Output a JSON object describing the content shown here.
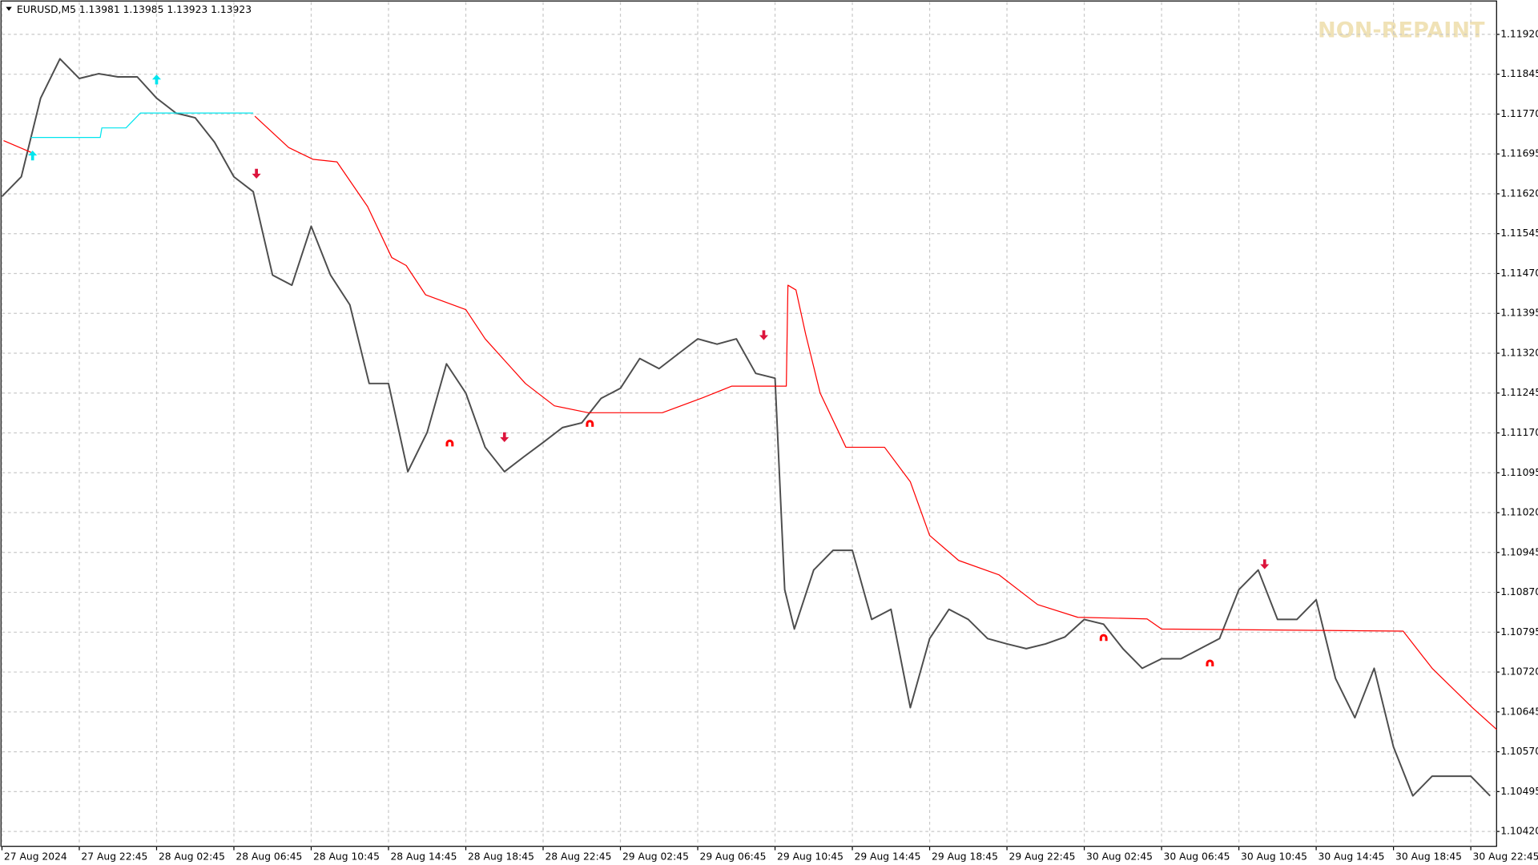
{
  "chart_data": {
    "type": "line",
    "title": "EURUSD,M5  1.13981 1.13985 1.13923 1.13923",
    "annotation": "NON-REPAINT",
    "grid": true,
    "xlim": [
      0,
      928
    ],
    "ylim": [
      1.10392,
      1.11981
    ],
    "xticks": [
      {
        "value": 0,
        "label": "27 Aug 2024"
      },
      {
        "value": 48,
        "label": "27 Aug 22:45"
      },
      {
        "value": 96,
        "label": "28 Aug 02:45"
      },
      {
        "value": 144,
        "label": "28 Aug 06:45"
      },
      {
        "value": 192,
        "label": "28 Aug 10:45"
      },
      {
        "value": 240,
        "label": "28 Aug 14:45"
      },
      {
        "value": 288,
        "label": "28 Aug 18:45"
      },
      {
        "value": 336,
        "label": "28 Aug 22:45"
      },
      {
        "value": 384,
        "label": "29 Aug 02:45"
      },
      {
        "value": 432,
        "label": "29 Aug 06:45"
      },
      {
        "value": 480,
        "label": "29 Aug 10:45"
      },
      {
        "value": 528,
        "label": "29 Aug 14:45"
      },
      {
        "value": 576,
        "label": "29 Aug 18:45"
      },
      {
        "value": 624,
        "label": "29 Aug 22:45"
      },
      {
        "value": 672,
        "label": "30 Aug 02:45"
      },
      {
        "value": 720,
        "label": "30 Aug 06:45"
      },
      {
        "value": 768,
        "label": "30 Aug 10:45"
      },
      {
        "value": 816,
        "label": "30 Aug 14:45"
      },
      {
        "value": 864,
        "label": "30 Aug 18:45"
      },
      {
        "value": 912,
        "label": "30 Aug 22:45"
      }
    ],
    "yticks": [
      {
        "value": 1.1192,
        "label": "1.11920"
      },
      1.11845,
      {
        "value": 1.1177,
        "label": "1.11770"
      },
      1.11695,
      {
        "value": 1.1162,
        "label": "1.11620"
      },
      1.11545,
      {
        "value": 1.1147,
        "label": "1.11470"
      },
      1.11395,
      {
        "value": 1.1132,
        "label": "1.11320"
      },
      1.11245,
      {
        "value": 1.1117,
        "label": "1.11170"
      },
      1.11095,
      {
        "value": 1.1102,
        "label": "1.11020"
      },
      1.10945,
      {
        "value": 1.1087,
        "label": "1.10870"
      },
      1.10795,
      {
        "value": 1.1072,
        "label": "1.10720"
      },
      1.10645,
      {
        "value": 1.1057,
        "label": "1.10570"
      },
      1.10495,
      {
        "value": 1.1042,
        "label": "1.10420"
      }
    ],
    "series": [
      {
        "color": "#4d4d4d",
        "x": [
          0,
          12,
          24,
          36,
          48,
          60,
          72,
          84,
          96,
          108,
          120,
          132,
          144,
          156,
          168,
          180,
          192,
          204,
          216,
          228,
          240,
          252,
          264,
          276,
          288,
          300,
          312,
          324,
          336,
          348,
          360,
          372,
          384,
          396,
          408,
          420,
          432,
          444,
          456,
          468,
          480,
          486,
          492,
          504,
          516,
          528,
          540,
          552,
          564,
          576,
          588,
          600,
          612,
          624,
          636,
          648,
          660,
          672,
          684,
          696,
          708,
          720,
          732,
          744,
          756,
          768,
          780,
          792,
          804,
          816,
          828,
          840,
          852,
          864,
          876,
          888,
          900,
          912,
          924
        ],
        "values": [
          1.11615,
          1.11652,
          1.118,
          1.11874,
          1.11837,
          1.11846,
          1.1184,
          1.1184,
          1.118,
          1.11772,
          1.11763,
          1.11717,
          1.11652,
          1.11624,
          1.11467,
          1.11448,
          1.11559,
          1.11467,
          1.11411,
          1.11263,
          1.11263,
          1.11097,
          1.11171,
          1.113,
          1.11245,
          1.11143,
          1.11097,
          1.11125,
          1.11152,
          1.1118,
          1.11189,
          1.11235,
          1.11254,
          1.1131,
          1.11291,
          1.11319,
          1.11347,
          1.11337,
          1.11347,
          1.11282,
          1.11273,
          1.10875,
          1.10801,
          1.10912,
          1.10949,
          1.10949,
          1.10819,
          1.10838,
          1.10653,
          1.10783,
          1.10838,
          1.10819,
          1.10783,
          1.10773,
          1.10764,
          1.10773,
          1.10786,
          1.10819,
          1.1081,
          1.10764,
          1.10727,
          1.10745,
          1.10745,
          1.10764,
          1.10783,
          1.10875,
          1.10912,
          1.10819,
          1.10819,
          1.10856,
          1.10708,
          1.10634,
          1.10727,
          1.10579,
          1.10487,
          1.10524,
          1.10524,
          1.10524,
          1.10487
        ]
      },
      {
        "color": "#ff0000",
        "x": [
          1,
          18
        ],
        "values": [
          1.1172,
          1.11698
        ]
      },
      {
        "color": "#00e5ee",
        "x": [
          18,
          61,
          62,
          77,
          86,
          156
        ],
        "values": [
          1.11726,
          1.11726,
          1.11744,
          1.11744,
          1.11772,
          1.11772
        ]
      },
      {
        "color": "#ff0000",
        "x": [
          157,
          178,
          193,
          208,
          227,
          242,
          251,
          263,
          288,
          300,
          325,
          343,
          364,
          410,
          435,
          453,
          487,
          488,
          493,
          499,
          508,
          524,
          548,
          564,
          576,
          594,
          619,
          643,
          668,
          711,
          720,
          870,
          888,
          913,
          928
        ],
        "values": [
          1.11766,
          1.11707,
          1.11685,
          1.1168,
          1.11596,
          1.115,
          1.11485,
          1.1143,
          1.11402,
          1.11347,
          1.11263,
          1.11221,
          1.11208,
          1.11208,
          1.11236,
          1.11258,
          1.11258,
          1.11448,
          1.11439,
          1.11356,
          1.11245,
          1.11143,
          1.11143,
          1.11078,
          1.10977,
          1.1093,
          1.10903,
          1.10847,
          1.10823,
          1.1082,
          1.10801,
          1.10797,
          1.10727,
          1.10653,
          1.10612
        ]
      },
      {
        "color": "#00e5ee",
        "marker": "up",
        "x": [
          19,
          96
        ],
        "values": [
          1.11694,
          1.11837
        ]
      },
      {
        "color": "#dc143c",
        "marker": "down",
        "x": [
          158,
          312,
          473,
          784
        ],
        "values": [
          1.11656,
          1.1116,
          1.11352,
          1.10921
        ]
      },
      {
        "color": "#ff0000",
        "marker": "exit",
        "x": [
          278,
          365,
          684,
          750
        ],
        "values": [
          1.11152,
          1.11189,
          1.10786,
          1.10738
        ]
      }
    ]
  }
}
